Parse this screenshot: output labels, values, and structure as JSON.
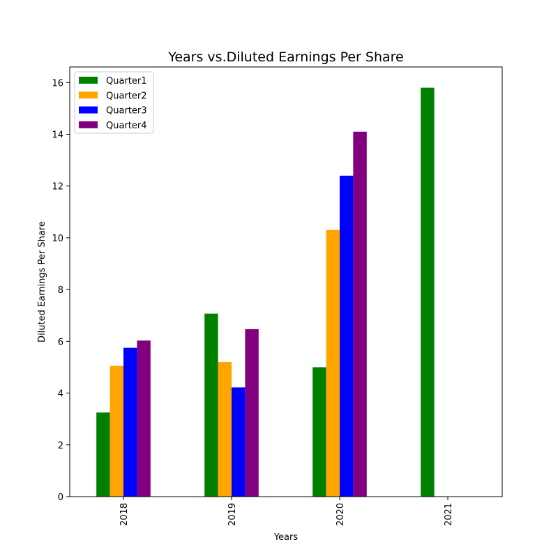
{
  "chart_data": {
    "type": "bar",
    "title": "Years vs.Diluted Earnings Per Share",
    "xlabel": "Years",
    "ylabel": "Diluted Earnings Per Share",
    "categories": [
      "2018",
      "2019",
      "2020",
      "2021"
    ],
    "ylim": [
      0,
      16.6
    ],
    "yticks": [
      0,
      2,
      4,
      6,
      8,
      10,
      12,
      14,
      16
    ],
    "legend_position": "top-left",
    "grid": false,
    "series": [
      {
        "name": "Quarter1",
        "color": "#008000",
        "values": [
          3.25,
          7.07,
          5.0,
          15.8
        ]
      },
      {
        "name": "Quarter2",
        "color": "#ffa500",
        "values": [
          5.05,
          5.2,
          10.3,
          null
        ]
      },
      {
        "name": "Quarter3",
        "color": "#0000ff",
        "values": [
          5.75,
          4.22,
          12.4,
          null
        ]
      },
      {
        "name": "Quarter4",
        "color": "#800080",
        "values": [
          6.03,
          6.47,
          14.1,
          null
        ]
      }
    ]
  }
}
